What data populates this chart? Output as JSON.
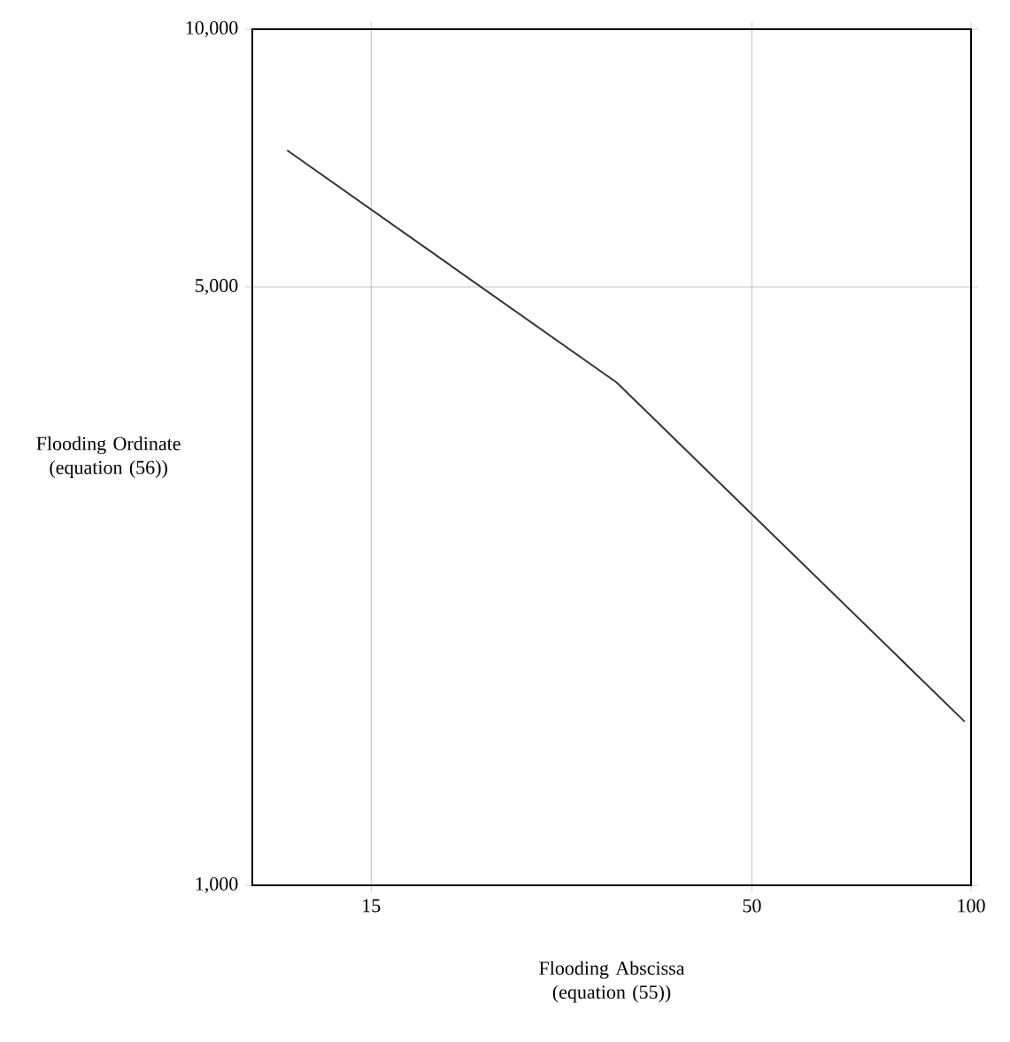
{
  "chart_data": {
    "type": "line",
    "xlabel": "Flooding Abscissa (equation (55))",
    "ylabel": "Flooding Ordinate (equation (56))",
    "log": "xy",
    "grid": true,
    "xlim": [
      10.3,
      100
    ],
    "ylim": [
      1000,
      10000
    ],
    "xticks": [
      15,
      50,
      100
    ],
    "yticks": [
      {
        "value": 1000,
        "label": "1,000"
      },
      {
        "value": 5000,
        "label": "5,000"
      },
      {
        "value": 10000,
        "label": "10,000"
      }
    ],
    "series": [
      {
        "color": "#333333",
        "x": [
          11.5,
          32.6,
          98
        ],
        "values": [
          7220,
          3867,
          1553
        ]
      }
    ]
  }
}
